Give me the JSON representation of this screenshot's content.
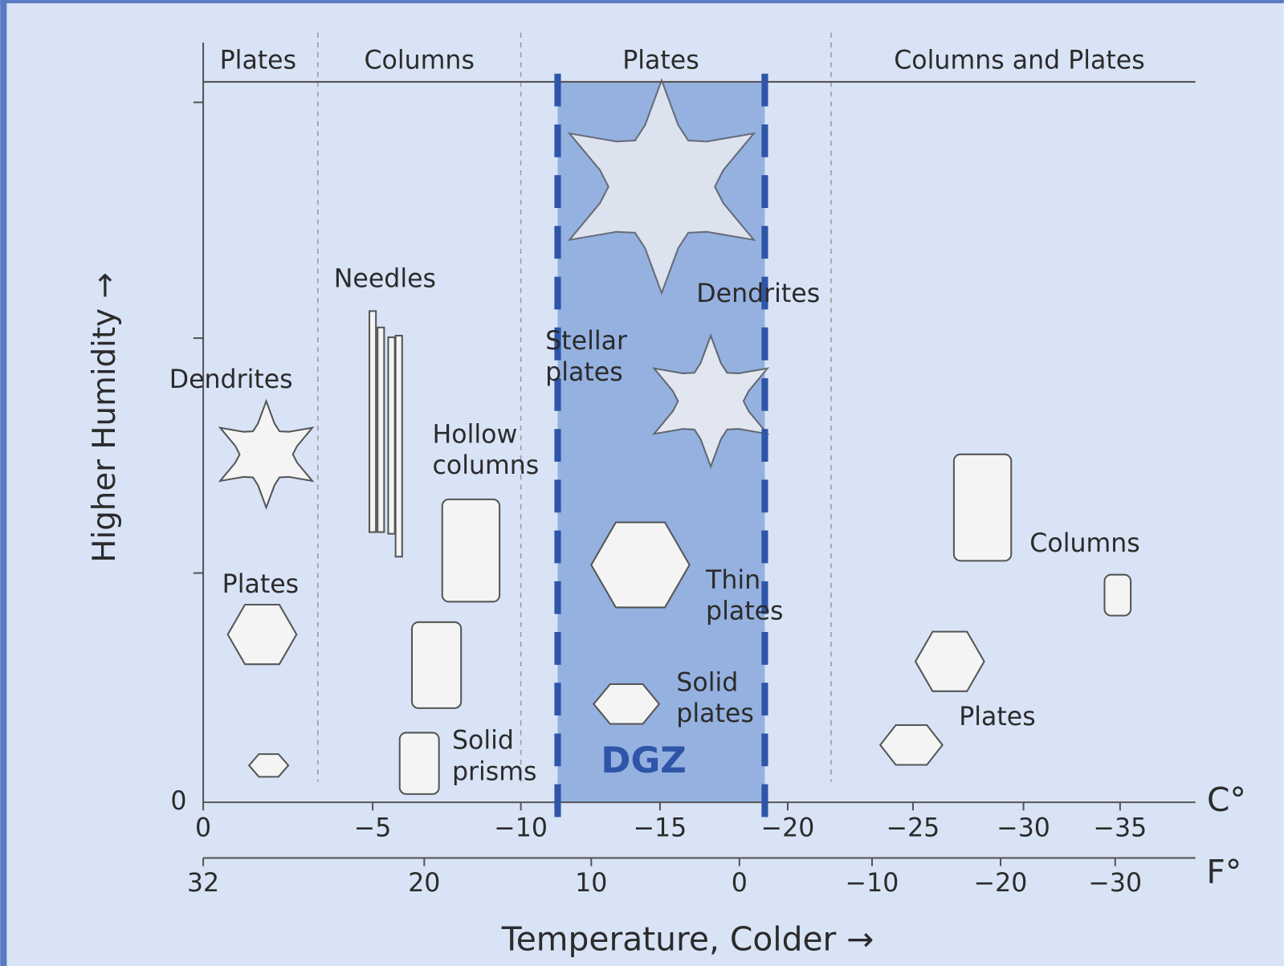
{
  "regimes": [
    "Plates",
    "Columns",
    "Plates",
    "Columns and Plates"
  ],
  "y_axis": {
    "label": "Higher Humidity →",
    "origin_label": "0"
  },
  "celsius_axis": {
    "unit": "C°",
    "ticks": [
      "0",
      "−5",
      "−10",
      "−15",
      "−20",
      "−25",
      "−30",
      "−35"
    ]
  },
  "fahrenheit_axis": {
    "unit": "F°",
    "ticks": [
      "32",
      "20",
      "10",
      "0",
      "−10",
      "−20",
      "−30"
    ]
  },
  "x_axis_label": "Temperature,  Colder →",
  "highlight": {
    "label": "DGZ"
  },
  "crystals": [
    {
      "lines": [
        "Dendrites"
      ]
    },
    {
      "lines": [
        "Needles"
      ]
    },
    {
      "lines": [
        "Hollow",
        "columns"
      ]
    },
    {
      "lines": [
        "Plates"
      ]
    },
    {
      "lines": [
        "Solid",
        "prisms"
      ]
    },
    {
      "lines": [
        "Stellar",
        "plates"
      ]
    },
    {
      "lines": [
        "Dendrites"
      ]
    },
    {
      "lines": [
        "Thin",
        "plates"
      ]
    },
    {
      "lines": [
        "Solid",
        "plates"
      ]
    },
    {
      "lines": [
        "Columns"
      ]
    },
    {
      "lines": [
        "Plates"
      ]
    }
  ]
}
